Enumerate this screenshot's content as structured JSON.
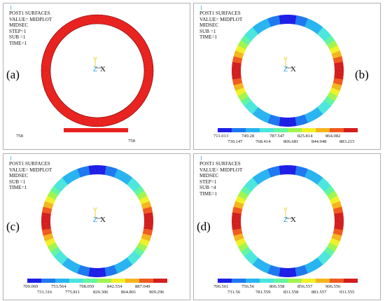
{
  "panels": [
    {
      "id": "a",
      "header": [
        "POST1 SURFACES",
        "VALUE= MIDPLOT",
        "MIDSEC",
        "STEP=1",
        "SUB =1",
        "TIME=1"
      ],
      "label": "(a)",
      "axes": {
        "y": "Y",
        "z": "Z",
        "x": "X"
      },
      "uniform": true,
      "uniform_color": "#e8221f",
      "legend_top": [
        "758"
      ],
      "legend_bottom": [
        "758"
      ]
    },
    {
      "id": "b",
      "header": [
        "POST1 SURFACES",
        "VALUE= MIDPLOT",
        "MIDSEC",
        "SUB =1",
        "TIME=1"
      ],
      "label": "(b)",
      "axes": {
        "y": "Y",
        "z": "Z",
        "x": "X"
      },
      "uniform": false,
      "legend_top": [
        "711.013",
        "749.28",
        "787.547",
        "825.814",
        "864.082"
      ],
      "legend_bottom": [
        "730.147",
        "768.414",
        "806.681",
        "844.948",
        "883.215"
      ]
    },
    {
      "id": "c",
      "header": [
        "POST1 SURFACES",
        "VALUE= MIDPLOT",
        "MIDSEC",
        "SUB =1",
        "TIME=1"
      ],
      "label": "(c)",
      "axes": {
        "y": "Y",
        "z": "Z",
        "x": "X"
      },
      "uniform": false,
      "legend_top": [
        "709.069",
        "753.564",
        "798.059",
        "842.554",
        "887.049"
      ],
      "legend_bottom": [
        "731.316",
        "775.811",
        "820.306",
        "864.801",
        "909.296"
      ]
    },
    {
      "id": "d",
      "header": [
        "POST1 SURFACES",
        "VALUE= MIDPLOT",
        "MIDSEC",
        "STEP=1",
        "SUB =4",
        "TIME=1"
      ],
      "label": "(d)",
      "axes": {
        "y": "Y",
        "z": "Z",
        "x": "X"
      },
      "uniform": false,
      "legend_top": [
        "706.561",
        "756.56",
        "806.558",
        "856.557",
        "906.556"
      ],
      "legend_bottom": [
        "731.56",
        "781.559",
        "831.558",
        "881.557",
        "931.555"
      ]
    }
  ],
  "colors": {
    "scale": [
      "#1e1ee6",
      "#1e78f0",
      "#28b4f0",
      "#4be6dc",
      "#64f5a0",
      "#a0f550",
      "#f0f028",
      "#f5b41e",
      "#f05a1e",
      "#d21e1e"
    ],
    "axis_y": "#e6c800",
    "axis_z": "#2aa4e0",
    "axis_x": "#111111",
    "border": "#b0b0b0"
  }
}
